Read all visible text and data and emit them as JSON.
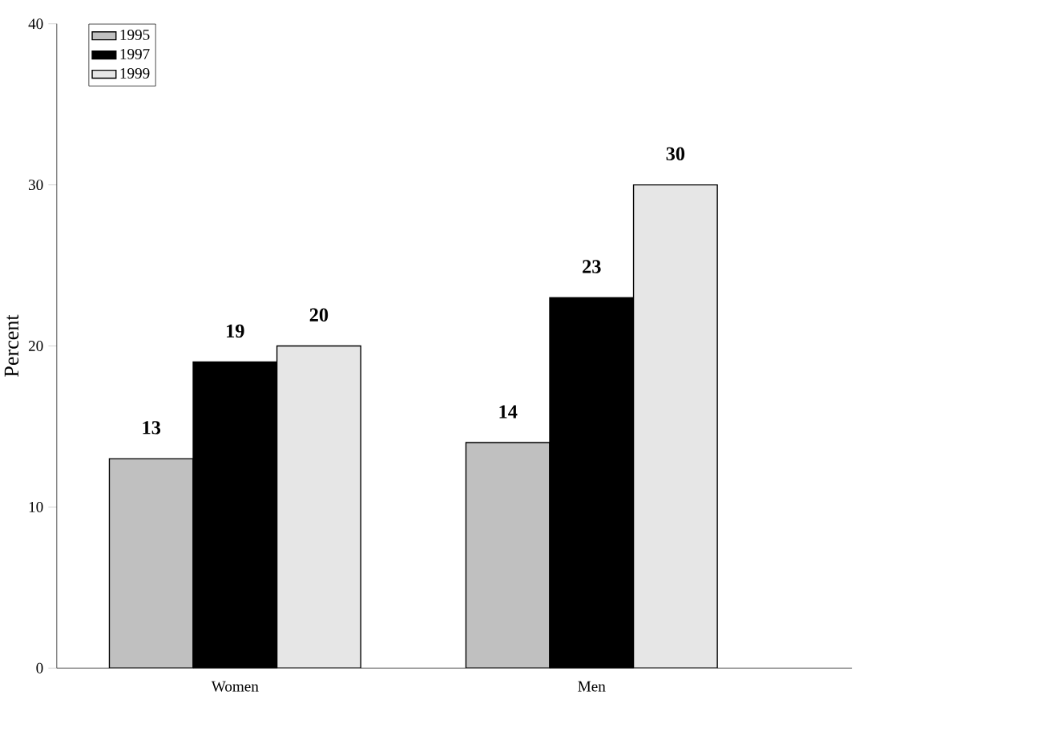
{
  "chart_data": {
    "type": "bar",
    "ylabel": "Percent",
    "categories": [
      "Women",
      "Men"
    ],
    "series": [
      {
        "name": "1995",
        "color": "#c0c0c0",
        "values": [
          13,
          14
        ]
      },
      {
        "name": "1997",
        "color": "#000000",
        "values": [
          19,
          23
        ]
      },
      {
        "name": "1999",
        "color": "#e6e6e6",
        "values": [
          20,
          30
        ]
      }
    ],
    "ylim": [
      0,
      40
    ],
    "yticks": [
      0,
      10,
      20,
      30,
      40
    ],
    "data_labels": true,
    "legend": "top left",
    "grid": false
  }
}
